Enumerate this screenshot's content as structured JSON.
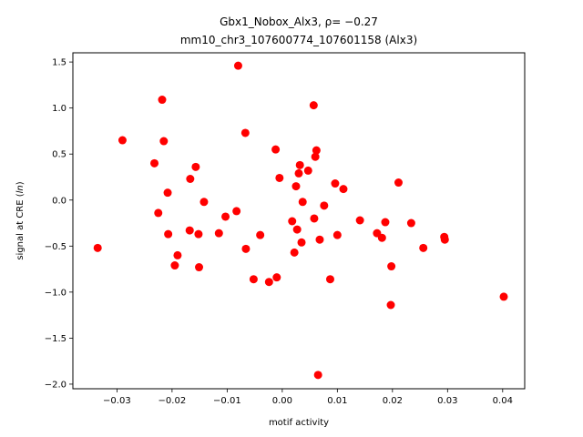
{
  "chart_data": {
    "type": "scatter",
    "title_line1": "Gbx1_Nobox_Alx3, ρ= −0.27",
    "title_line2": "mm10_chr3_107600774_107601158 (Alx3)",
    "xlabel": "motif activity",
    "ylabel": "signal at CRE (ln)",
    "xlim": [
      -0.038,
      0.044
    ],
    "ylim": [
      -2.05,
      1.6
    ],
    "xticks": [
      -0.03,
      -0.02,
      -0.01,
      0.0,
      0.01,
      0.02,
      0.03,
      0.04
    ],
    "xtick_labels": [
      "−0.03",
      "−0.02",
      "−0.01",
      "0.00",
      "0.01",
      "0.02",
      "0.03",
      "0.04"
    ],
    "yticks": [
      -2.0,
      -1.5,
      -1.0,
      -0.5,
      0.0,
      0.5,
      1.0,
      1.5
    ],
    "ytick_labels": [
      "−2.0",
      "−1.5",
      "−1.0",
      "−0.5",
      "0.0",
      "0.5",
      "1.0",
      "1.5"
    ],
    "grid": false,
    "marker_color": "#ff0000",
    "points": [
      {
        "x": -0.0335,
        "y": -0.52
      },
      {
        "x": -0.029,
        "y": 0.65
      },
      {
        "x": -0.0232,
        "y": 0.4
      },
      {
        "x": -0.0225,
        "y": -0.14
      },
      {
        "x": -0.0218,
        "y": 1.09
      },
      {
        "x": -0.0215,
        "y": 0.64
      },
      {
        "x": -0.0208,
        "y": 0.08
      },
      {
        "x": -0.0207,
        "y": -0.37
      },
      {
        "x": -0.0195,
        "y": -0.71
      },
      {
        "x": -0.019,
        "y": -0.6
      },
      {
        "x": -0.0168,
        "y": -0.33
      },
      {
        "x": -0.0167,
        "y": 0.23
      },
      {
        "x": -0.0157,
        "y": 0.36
      },
      {
        "x": -0.0152,
        "y": -0.37
      },
      {
        "x": -0.0151,
        "y": -0.73
      },
      {
        "x": -0.0142,
        "y": -0.02
      },
      {
        "x": -0.0115,
        "y": -0.36
      },
      {
        "x": -0.0103,
        "y": -0.18
      },
      {
        "x": -0.0083,
        "y": -0.12
      },
      {
        "x": -0.008,
        "y": 1.46
      },
      {
        "x": -0.0067,
        "y": 0.73
      },
      {
        "x": -0.0066,
        "y": -0.53
      },
      {
        "x": -0.0052,
        "y": -0.86
      },
      {
        "x": -0.004,
        "y": -0.38
      },
      {
        "x": -0.0024,
        "y": -0.89
      },
      {
        "x": -0.0012,
        "y": 0.55
      },
      {
        "x": -0.001,
        "y": -0.84
      },
      {
        "x": -0.0005,
        "y": 0.24
      },
      {
        "x": 0.0018,
        "y": -0.23
      },
      {
        "x": 0.0022,
        "y": -0.57
      },
      {
        "x": 0.0025,
        "y": 0.15
      },
      {
        "x": 0.0027,
        "y": -0.32
      },
      {
        "x": 0.003,
        "y": 0.29
      },
      {
        "x": 0.0032,
        "y": 0.38
      },
      {
        "x": 0.0035,
        "y": -0.46
      },
      {
        "x": 0.0037,
        "y": -0.02
      },
      {
        "x": 0.0047,
        "y": 0.32
      },
      {
        "x": 0.0057,
        "y": 1.03
      },
      {
        "x": 0.0058,
        "y": -0.2
      },
      {
        "x": 0.006,
        "y": 0.47
      },
      {
        "x": 0.0062,
        "y": 0.54
      },
      {
        "x": 0.0065,
        "y": -1.9
      },
      {
        "x": 0.0068,
        "y": -0.43
      },
      {
        "x": 0.0076,
        "y": -0.06
      },
      {
        "x": 0.0087,
        "y": -0.86
      },
      {
        "x": 0.0096,
        "y": 0.18
      },
      {
        "x": 0.01,
        "y": -0.38
      },
      {
        "x": 0.0111,
        "y": 0.12
      },
      {
        "x": 0.0141,
        "y": -0.22
      },
      {
        "x": 0.0172,
        "y": -0.36
      },
      {
        "x": 0.0181,
        "y": -0.41
      },
      {
        "x": 0.0187,
        "y": -0.24
      },
      {
        "x": 0.0197,
        "y": -1.14
      },
      {
        "x": 0.0198,
        "y": -0.72
      },
      {
        "x": 0.0211,
        "y": 0.19
      },
      {
        "x": 0.0234,
        "y": -0.25
      },
      {
        "x": 0.0256,
        "y": -0.52
      },
      {
        "x": 0.0294,
        "y": -0.4
      },
      {
        "x": 0.0295,
        "y": -0.43
      },
      {
        "x": 0.0402,
        "y": -1.05
      }
    ]
  }
}
